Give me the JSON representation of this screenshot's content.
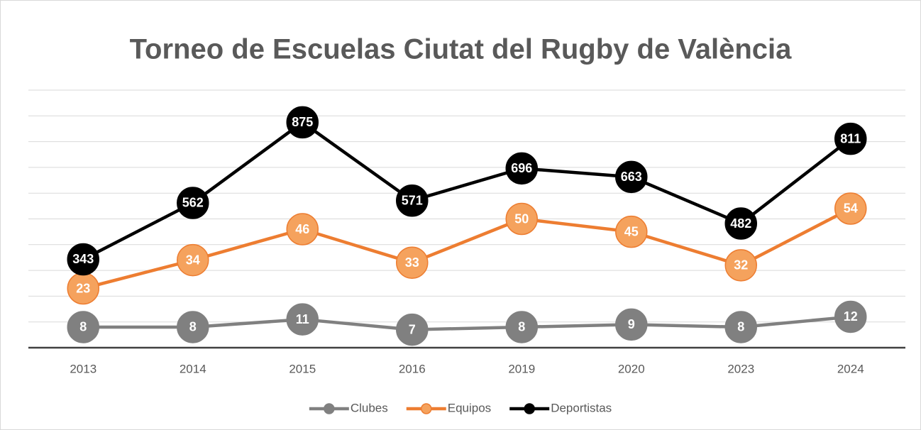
{
  "chart_data": {
    "type": "line",
    "title": "Torneo de Escuelas Ciutat del Rugby de València",
    "categories": [
      "2013",
      "2014",
      "2015",
      "2016",
      "2019",
      "2020",
      "2023",
      "2024"
    ],
    "series": [
      {
        "name": "Clubes",
        "color": "#808080",
        "marker_color": "#808080",
        "axis": "y2",
        "values": [
          8,
          8,
          11,
          7,
          8,
          9,
          8,
          12
        ]
      },
      {
        "name": "Equipos",
        "color": "#ed7d31",
        "marker_color": "#f5a25d",
        "axis": "y2",
        "values": [
          23,
          34,
          46,
          33,
          50,
          45,
          32,
          54
        ]
      },
      {
        "name": "Deportistas",
        "color": "#000000",
        "marker_color": "#000000",
        "values": [
          343,
          562,
          875,
          571,
          696,
          663,
          482,
          811
        ]
      }
    ],
    "ylim": [
      0,
      1000
    ],
    "yticks": [
      0,
      100,
      200,
      300,
      400,
      500,
      600,
      700,
      800,
      900,
      1000
    ],
    "y2lim": [
      0,
      100
    ],
    "grid": true,
    "legend": "bottom"
  }
}
